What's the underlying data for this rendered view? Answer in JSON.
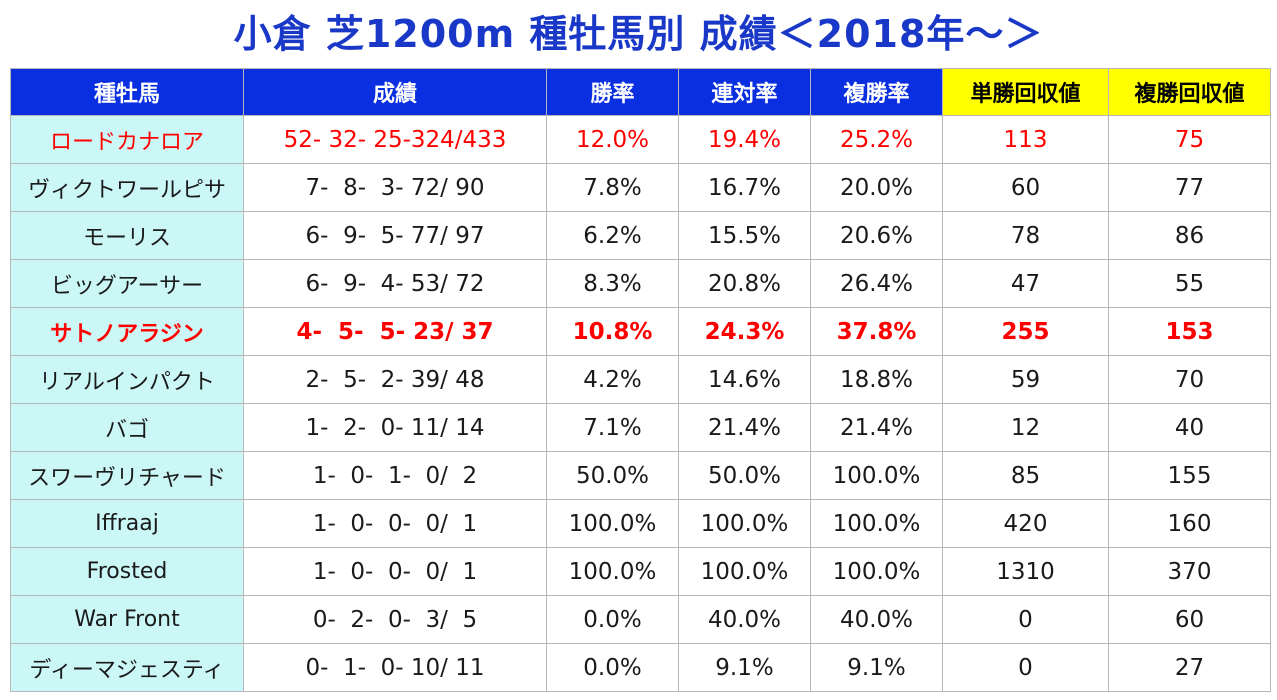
{
  "title": "小倉 芝1200m 種牡馬別 成績＜2018年～＞",
  "headers": [
    "種牡馬",
    "成績",
    "勝率",
    "連対率",
    "複勝率",
    "単勝回収値",
    "複勝回収値"
  ],
  "rows": [
    {
      "name": "ロードカナロア",
      "record": "52- 32- 25-324/433",
      "win": "12.0%",
      "place2": "19.4%",
      "place3": "25.2%",
      "win_return": "113",
      "place_return": "75"
    },
    {
      "name": "ヴィクトワールピサ",
      "record": "7-  8-  3- 72/ 90",
      "win": "7.8%",
      "place2": "16.7%",
      "place3": "20.0%",
      "win_return": "60",
      "place_return": "77"
    },
    {
      "name": "モーリス",
      "record": "6-  9-  5- 77/ 97",
      "win": "6.2%",
      "place2": "15.5%",
      "place3": "20.6%",
      "win_return": "78",
      "place_return": "86"
    },
    {
      "name": "ビッグアーサー",
      "record": "6-  9-  4- 53/ 72",
      "win": "8.3%",
      "place2": "20.8%",
      "place3": "26.4%",
      "win_return": "47",
      "place_return": "55"
    },
    {
      "name": "サトノアラジン",
      "record": "4-  5-  5- 23/ 37",
      "win": "10.8%",
      "place2": "24.3%",
      "place3": "37.8%",
      "win_return": "255",
      "place_return": "153"
    },
    {
      "name": "リアルインパクト",
      "record": "2-  5-  2- 39/ 48",
      "win": "4.2%",
      "place2": "14.6%",
      "place3": "18.8%",
      "win_return": "59",
      "place_return": "70"
    },
    {
      "name": "バゴ",
      "record": "1-  2-  0- 11/ 14",
      "win": "7.1%",
      "place2": "21.4%",
      "place3": "21.4%",
      "win_return": "12",
      "place_return": "40"
    },
    {
      "name": "スワーヴリチャード",
      "record": "1-  0-  1-  0/  2",
      "win": "50.0%",
      "place2": "50.0%",
      "place3": "100.0%",
      "win_return": "85",
      "place_return": "155"
    },
    {
      "name": "Iffraaj",
      "record": "1-  0-  0-  0/  1",
      "win": "100.0%",
      "place2": "100.0%",
      "place3": "100.0%",
      "win_return": "420",
      "place_return": "160"
    },
    {
      "name": "Frosted",
      "record": "1-  0-  0-  0/  1",
      "win": "100.0%",
      "place2": "100.0%",
      "place3": "100.0%",
      "win_return": "1310",
      "place_return": "370"
    },
    {
      "name": "War Front",
      "record": "0-  2-  0-  3/  5",
      "win": "0.0%",
      "place2": "40.0%",
      "place3": "40.0%",
      "win_return": "0",
      "place_return": "60"
    },
    {
      "name": "ディーマジェスティ",
      "record": "0-  1-  0- 10/ 11",
      "win": "0.0%",
      "place2": "9.1%",
      "place3": "9.1%",
      "win_return": "0",
      "place_return": "27"
    }
  ],
  "colors": {
    "title": "#1a38c8",
    "header_bg": "#0a2fe0",
    "header_highlight_bg": "#ffff00",
    "name_col_bg": "#ccf7f7",
    "highlight_text": "#ff0000"
  }
}
